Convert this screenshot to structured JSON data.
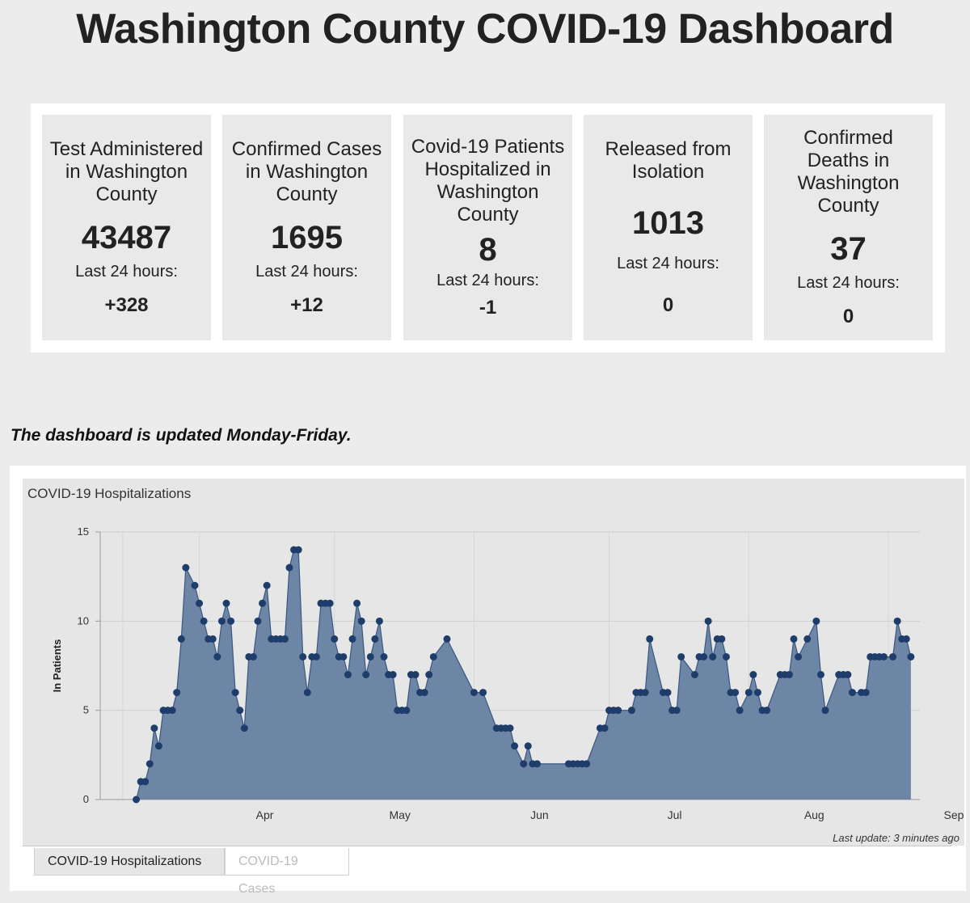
{
  "page": {
    "title": "Washington County COVID-19 Dashboard",
    "update_note": "The dashboard is updated Monday-Friday."
  },
  "stats": [
    {
      "label": "Test Administered in Washington County",
      "value": "43487",
      "last24_label": "Last 24 hours:",
      "last24_value": "+328"
    },
    {
      "label": "Confirmed Cases in Washington County",
      "value": "1695",
      "last24_label": "Last 24 hours:",
      "last24_value": "+12"
    },
    {
      "label": "Covid-19 Patients Hospitalized in Washington County",
      "value": "8",
      "last24_label": "Last 24 hours:",
      "last24_value": "-1"
    },
    {
      "label": "Released from Isolation",
      "value": "1013",
      "last24_label": "Last 24 hours:",
      "last24_value": "0"
    },
    {
      "label": "Confirmed Deaths in Washington County",
      "value": "37",
      "last24_label": "Last 24 hours:",
      "last24_value": "0"
    }
  ],
  "chart": {
    "last_update": "Last update: 3 minutes ago"
  },
  "tabs": [
    {
      "label": "COVID-19 Hospitalizations",
      "active": true
    },
    {
      "label": "COVID-19 Cases",
      "active": false
    }
  ],
  "colors": {
    "area_fill": "#6e86a6",
    "line": "#3a577f",
    "point": "#1f3d6b"
  },
  "chart_data": {
    "type": "area",
    "title": "COVID-19 Hospitalizations",
    "xlabel": "",
    "ylabel": "In Patients",
    "ylim": [
      0,
      15
    ],
    "yticks": [
      0,
      5,
      10,
      15
    ],
    "xticks": [
      {
        "label": "Apr",
        "date": "2020-04-01"
      },
      {
        "label": "May",
        "date": "2020-05-01"
      },
      {
        "label": "Jun",
        "date": "2020-06-01"
      },
      {
        "label": "Jul",
        "date": "2020-07-01"
      },
      {
        "label": "Aug",
        "date": "2020-08-01"
      },
      {
        "label": "Sep",
        "date": "2020-09-01"
      }
    ],
    "grid": true,
    "series": [
      {
        "values": [
          {
            "x": "2020-03-18",
            "y": 0
          },
          {
            "x": "2020-03-19",
            "y": 1
          },
          {
            "x": "2020-03-20",
            "y": 1
          },
          {
            "x": "2020-03-21",
            "y": 2
          },
          {
            "x": "2020-03-22",
            "y": 4
          },
          {
            "x": "2020-03-23",
            "y": 3
          },
          {
            "x": "2020-03-24",
            "y": 5
          },
          {
            "x": "2020-03-25",
            "y": 5
          },
          {
            "x": "2020-03-26",
            "y": 5
          },
          {
            "x": "2020-03-27",
            "y": 6
          },
          {
            "x": "2020-03-28",
            "y": 9
          },
          {
            "x": "2020-03-29",
            "y": 13
          },
          {
            "x": "2020-03-31",
            "y": 12
          },
          {
            "x": "2020-04-01",
            "y": 11
          },
          {
            "x": "2020-04-02",
            "y": 10
          },
          {
            "x": "2020-04-03",
            "y": 9
          },
          {
            "x": "2020-04-04",
            "y": 9
          },
          {
            "x": "2020-04-05",
            "y": 8
          },
          {
            "x": "2020-04-06",
            "y": 10
          },
          {
            "x": "2020-04-07",
            "y": 11
          },
          {
            "x": "2020-04-08",
            "y": 10
          },
          {
            "x": "2020-04-09",
            "y": 6
          },
          {
            "x": "2020-04-10",
            "y": 5
          },
          {
            "x": "2020-04-11",
            "y": 4
          },
          {
            "x": "2020-04-12",
            "y": 8
          },
          {
            "x": "2020-04-13",
            "y": 8
          },
          {
            "x": "2020-04-14",
            "y": 10
          },
          {
            "x": "2020-04-15",
            "y": 11
          },
          {
            "x": "2020-04-16",
            "y": 12
          },
          {
            "x": "2020-04-17",
            "y": 9
          },
          {
            "x": "2020-04-18",
            "y": 9
          },
          {
            "x": "2020-04-19",
            "y": 9
          },
          {
            "x": "2020-04-20",
            "y": 9
          },
          {
            "x": "2020-04-21",
            "y": 13
          },
          {
            "x": "2020-04-22",
            "y": 14
          },
          {
            "x": "2020-04-23",
            "y": 14
          },
          {
            "x": "2020-04-24",
            "y": 8
          },
          {
            "x": "2020-04-25",
            "y": 6
          },
          {
            "x": "2020-04-26",
            "y": 8
          },
          {
            "x": "2020-04-27",
            "y": 8
          },
          {
            "x": "2020-04-28",
            "y": 11
          },
          {
            "x": "2020-04-29",
            "y": 11
          },
          {
            "x": "2020-04-30",
            "y": 11
          },
          {
            "x": "2020-05-01",
            "y": 9
          },
          {
            "x": "2020-05-02",
            "y": 8
          },
          {
            "x": "2020-05-03",
            "y": 8
          },
          {
            "x": "2020-05-04",
            "y": 7
          },
          {
            "x": "2020-05-05",
            "y": 9
          },
          {
            "x": "2020-05-06",
            "y": 11
          },
          {
            "x": "2020-05-07",
            "y": 10
          },
          {
            "x": "2020-05-08",
            "y": 7
          },
          {
            "x": "2020-05-09",
            "y": 8
          },
          {
            "x": "2020-05-10",
            "y": 9
          },
          {
            "x": "2020-05-11",
            "y": 10
          },
          {
            "x": "2020-05-12",
            "y": 8
          },
          {
            "x": "2020-05-13",
            "y": 7
          },
          {
            "x": "2020-05-14",
            "y": 7
          },
          {
            "x": "2020-05-15",
            "y": 5
          },
          {
            "x": "2020-05-16",
            "y": 5
          },
          {
            "x": "2020-05-17",
            "y": 5
          },
          {
            "x": "2020-05-18",
            "y": 7
          },
          {
            "x": "2020-05-19",
            "y": 7
          },
          {
            "x": "2020-05-20",
            "y": 6
          },
          {
            "x": "2020-05-21",
            "y": 6
          },
          {
            "x": "2020-05-22",
            "y": 7
          },
          {
            "x": "2020-05-23",
            "y": 8
          },
          {
            "x": "2020-05-26",
            "y": 9
          },
          {
            "x": "2020-06-01",
            "y": 6
          },
          {
            "x": "2020-06-03",
            "y": 6
          },
          {
            "x": "2020-06-06",
            "y": 4
          },
          {
            "x": "2020-06-07",
            "y": 4
          },
          {
            "x": "2020-06-08",
            "y": 4
          },
          {
            "x": "2020-06-09",
            "y": 4
          },
          {
            "x": "2020-06-10",
            "y": 3
          },
          {
            "x": "2020-06-12",
            "y": 2
          },
          {
            "x": "2020-06-13",
            "y": 3
          },
          {
            "x": "2020-06-14",
            "y": 2
          },
          {
            "x": "2020-06-15",
            "y": 2
          },
          {
            "x": "2020-06-22",
            "y": 2
          },
          {
            "x": "2020-06-23",
            "y": 2
          },
          {
            "x": "2020-06-24",
            "y": 2
          },
          {
            "x": "2020-06-25",
            "y": 2
          },
          {
            "x": "2020-06-26",
            "y": 2
          },
          {
            "x": "2020-06-29",
            "y": 4
          },
          {
            "x": "2020-06-30",
            "y": 4
          },
          {
            "x": "2020-07-01",
            "y": 5
          },
          {
            "x": "2020-07-02",
            "y": 5
          },
          {
            "x": "2020-07-03",
            "y": 5
          },
          {
            "x": "2020-07-06",
            "y": 5
          },
          {
            "x": "2020-07-07",
            "y": 6
          },
          {
            "x": "2020-07-08",
            "y": 6
          },
          {
            "x": "2020-07-09",
            "y": 6
          },
          {
            "x": "2020-07-10",
            "y": 9
          },
          {
            "x": "2020-07-13",
            "y": 6
          },
          {
            "x": "2020-07-14",
            "y": 6
          },
          {
            "x": "2020-07-15",
            "y": 5
          },
          {
            "x": "2020-07-16",
            "y": 5
          },
          {
            "x": "2020-07-17",
            "y": 8
          },
          {
            "x": "2020-07-20",
            "y": 7
          },
          {
            "x": "2020-07-21",
            "y": 8
          },
          {
            "x": "2020-07-22",
            "y": 8
          },
          {
            "x": "2020-07-23",
            "y": 10
          },
          {
            "x": "2020-07-24",
            "y": 8
          },
          {
            "x": "2020-07-25",
            "y": 9
          },
          {
            "x": "2020-07-26",
            "y": 9
          },
          {
            "x": "2020-07-27",
            "y": 8
          },
          {
            "x": "2020-07-28",
            "y": 6
          },
          {
            "x": "2020-07-29",
            "y": 6
          },
          {
            "x": "2020-07-30",
            "y": 5
          },
          {
            "x": "2020-08-01",
            "y": 6
          },
          {
            "x": "2020-08-02",
            "y": 7
          },
          {
            "x": "2020-08-03",
            "y": 6
          },
          {
            "x": "2020-08-04",
            "y": 5
          },
          {
            "x": "2020-08-05",
            "y": 5
          },
          {
            "x": "2020-08-08",
            "y": 7
          },
          {
            "x": "2020-08-09",
            "y": 7
          },
          {
            "x": "2020-08-10",
            "y": 7
          },
          {
            "x": "2020-08-11",
            "y": 9
          },
          {
            "x": "2020-08-12",
            "y": 8
          },
          {
            "x": "2020-08-14",
            "y": 9
          },
          {
            "x": "2020-08-16",
            "y": 10
          },
          {
            "x": "2020-08-17",
            "y": 7
          },
          {
            "x": "2020-08-18",
            "y": 5
          },
          {
            "x": "2020-08-21",
            "y": 7
          },
          {
            "x": "2020-08-22",
            "y": 7
          },
          {
            "x": "2020-08-23",
            "y": 7
          },
          {
            "x": "2020-08-24",
            "y": 6
          },
          {
            "x": "2020-08-26",
            "y": 6
          },
          {
            "x": "2020-08-27",
            "y": 6
          },
          {
            "x": "2020-08-28",
            "y": 8
          },
          {
            "x": "2020-08-29",
            "y": 8
          },
          {
            "x": "2020-08-30",
            "y": 8
          },
          {
            "x": "2020-08-31",
            "y": 8
          },
          {
            "x": "2020-09-02",
            "y": 8
          },
          {
            "x": "2020-09-03",
            "y": 10
          },
          {
            "x": "2020-09-04",
            "y": 9
          },
          {
            "x": "2020-09-05",
            "y": 9
          },
          {
            "x": "2020-09-06",
            "y": 8
          }
        ]
      }
    ]
  }
}
